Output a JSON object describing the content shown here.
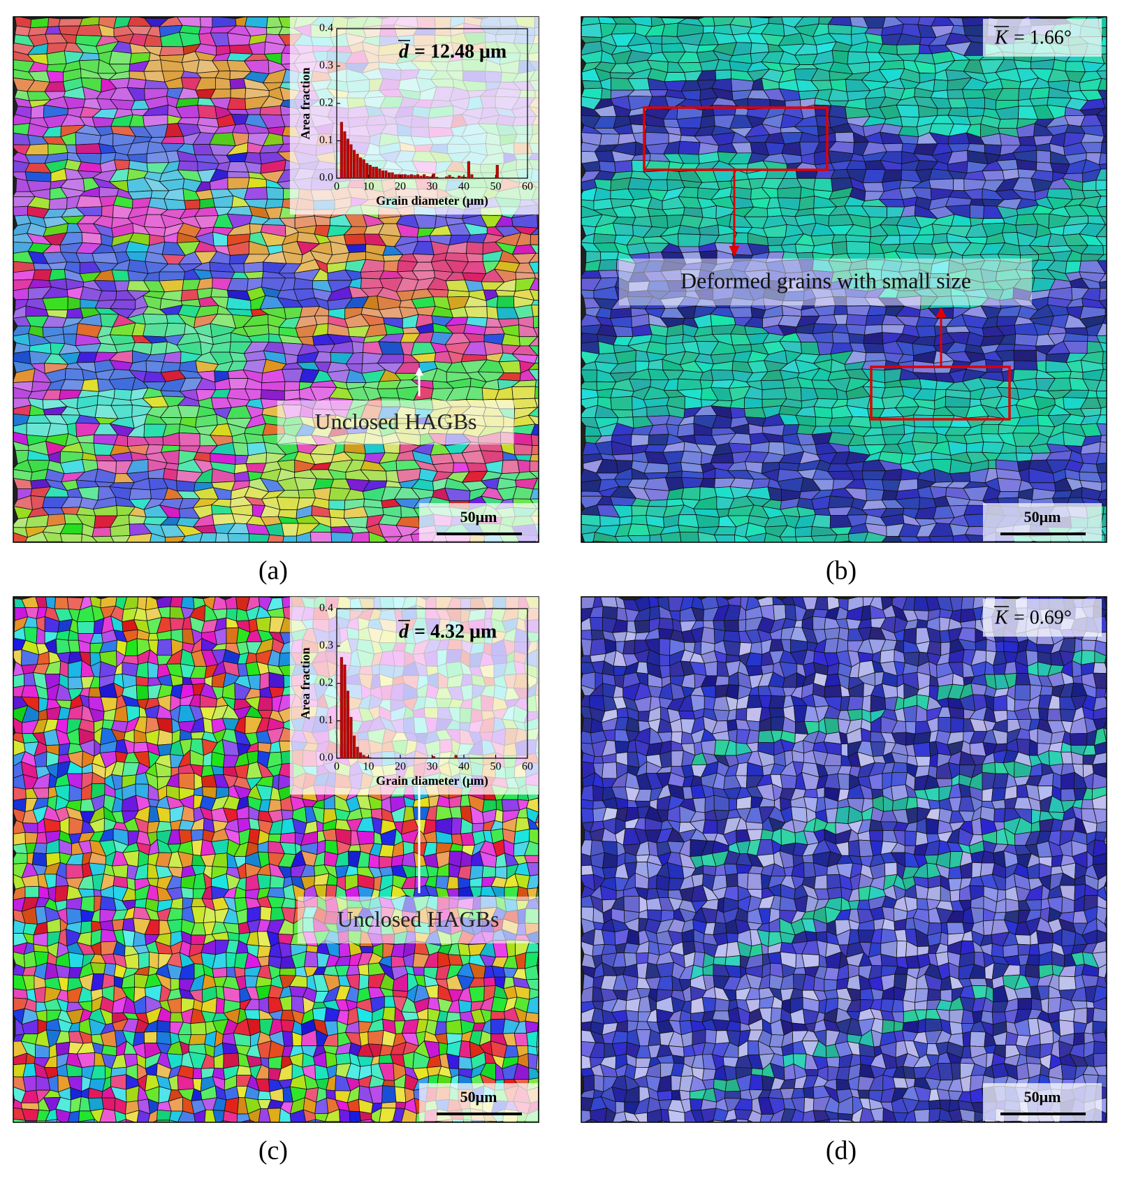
{
  "chart_data": [
    {
      "type": "histogram",
      "mean_symbol": "d",
      "mean_text": "= 12.48 μm",
      "ylabel": "Area fraction",
      "xlabel": "Grain diameter (μm)",
      "color": "#c00000",
      "bins": [
        1,
        2,
        3,
        4,
        5,
        6,
        7,
        8,
        9,
        10,
        11,
        12,
        13,
        14,
        15,
        16,
        17,
        18,
        19,
        20,
        21,
        22,
        23,
        24,
        25,
        26,
        27,
        28,
        29,
        30,
        31,
        32,
        33,
        34,
        35,
        36,
        37,
        38,
        39,
        40,
        41,
        42,
        43,
        44,
        45,
        46,
        47,
        48,
        49,
        50,
        51
      ],
      "values": [
        0.15,
        0.125,
        0.105,
        0.09,
        0.075,
        0.065,
        0.055,
        0.05,
        0.04,
        0.035,
        0.03,
        0.03,
        0.025,
        0.02,
        0.02,
        0.015,
        0.015,
        0.01,
        0.01,
        0.01,
        0.01,
        0.008,
        0.01,
        0.008,
        0.01,
        0.006,
        0.01,
        0.005,
        0.004,
        0.012,
        0.003,
        0,
        0,
        0.004,
        0.008,
        0.003,
        0,
        0.006,
        0.004,
        0.003,
        0.045,
        0.01,
        0,
        0,
        0,
        0,
        0,
        0,
        0,
        0.035
      ],
      "xlim": [
        0,
        60
      ],
      "xticks": [
        0,
        10,
        20,
        30,
        40,
        50,
        60
      ],
      "ylim": [
        0,
        0.4
      ],
      "yticks": [
        {
          "value": 0,
          "label": "0.0"
        },
        0.1,
        0.2,
        0.3,
        0.4
      ]
    },
    {
      "type": "histogram",
      "mean_symbol": "d",
      "mean_text": "= 4.32 μm",
      "ylabel": "Area fraction",
      "xlabel": "Grain diameter (μm)",
      "color": "#c00000",
      "bins": [
        1,
        2,
        3,
        4,
        5,
        6,
        7,
        8,
        9,
        10,
        11,
        12,
        13,
        14,
        15,
        16,
        17,
        18,
        19,
        20,
        21,
        22,
        23,
        24,
        25,
        26,
        27,
        28,
        29,
        30,
        31,
        32,
        33,
        34,
        35,
        36,
        37,
        38
      ],
      "values": [
        0.27,
        0.25,
        0.18,
        0.11,
        0.06,
        0.03,
        0.015,
        0.008,
        0.004,
        0.002,
        0,
        0,
        0,
        0,
        0,
        0,
        0,
        0,
        0,
        0,
        0,
        0,
        0,
        0,
        0,
        0,
        0,
        0,
        0,
        0.005,
        0,
        0,
        0,
        0,
        0,
        0,
        0.008
      ],
      "xlim": [
        0,
        60
      ],
      "xticks": [
        0,
        10,
        20,
        30,
        40,
        50,
        60
      ],
      "ylim": [
        0,
        0.4
      ],
      "yticks": [
        {
          "value": 0,
          "label": "0.0"
        },
        0.1,
        0.2,
        0.3,
        0.4
      ]
    }
  ],
  "panels": [
    {
      "label": "(a)",
      "annotation": "Unclosed HAGBs",
      "scale_bar": "50μm"
    },
    {
      "label": "(b)",
      "mean_symbol": "K",
      "mean_text": "= 1.66°",
      "annotation": "Deformed grains with small size",
      "scale_bar": "50μm"
    },
    {
      "label": "(c)",
      "annotation": "Unclosed HAGBs",
      "scale_bar": "50μm"
    },
    {
      "label": "(d)",
      "mean_symbol": "K",
      "mean_text": "= 0.69°",
      "scale_bar": "50μm"
    }
  ]
}
